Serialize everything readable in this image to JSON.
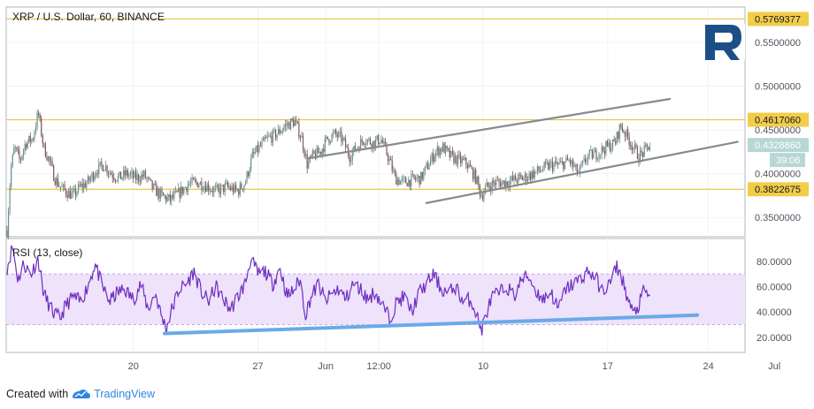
{
  "colors": {
    "candle_up": "#6a8f8f",
    "candle_down": "#7a5a5a",
    "hline": "#e8c547",
    "hline_label_bg": "#f2cd49",
    "last_price_bg": "#b7d7d6",
    "channel": "#858b8e",
    "rsi_line": "#6d2fc0",
    "rsi_band": "#efe2fb",
    "rsi_trend": "#6aaae8",
    "grid": "#f0f3f5",
    "border": "#b2b5be",
    "logo": "#1d4f87"
  },
  "chart_data": [
    {
      "type": "candlestick",
      "title": "XRP / U.S. Dollar, 60, BINANCE",
      "ylim": [
        0.328,
        0.5905
      ],
      "yticks": [
        "0.3500000",
        "0.4000000",
        "0.4500000",
        "0.5000000",
        "0.5500000"
      ],
      "xticks": [
        "20",
        "27",
        "Jun",
        "12:00",
        "10",
        "17",
        "24",
        "Jul"
      ],
      "horizontal_levels": [
        "0.5769377",
        "0.4617060",
        "0.3822675"
      ],
      "last_price": "0.4328860",
      "countdown": "39:06",
      "x_range_days": [
        13.6,
        31.7
      ],
      "price_path": [
        [
          13.6,
          0.335
        ],
        [
          13.8,
          0.405
        ],
        [
          14.0,
          0.43
        ],
        [
          14.3,
          0.415
        ],
        [
          14.6,
          0.435
        ],
        [
          15.0,
          0.44
        ],
        [
          15.3,
          0.47
        ],
        [
          15.6,
          0.43
        ],
        [
          15.9,
          0.415
        ],
        [
          16.2,
          0.395
        ],
        [
          16.5,
          0.385
        ],
        [
          16.8,
          0.38
        ],
        [
          17.2,
          0.375
        ],
        [
          17.6,
          0.385
        ],
        [
          18.0,
          0.39
        ],
        [
          18.5,
          0.405
        ],
        [
          18.9,
          0.41
        ],
        [
          19.3,
          0.4
        ],
        [
          19.7,
          0.395
        ],
        [
          20.1,
          0.4
        ],
        [
          20.6,
          0.395
        ],
        [
          21.1,
          0.398
        ],
        [
          21.5,
          0.385
        ],
        [
          22.0,
          0.375
        ],
        [
          22.5,
          0.37
        ],
        [
          23.0,
          0.378
        ],
        [
          23.5,
          0.388
        ],
        [
          24.0,
          0.39
        ],
        [
          24.5,
          0.386
        ],
        [
          25.0,
          0.38
        ],
        [
          25.6,
          0.385
        ],
        [
          26.2,
          0.38
        ],
        [
          26.6,
          0.39
        ],
        [
          27.0,
          0.42
        ],
        [
          27.4,
          0.43
        ],
        [
          27.8,
          0.44
        ],
        [
          28.3,
          0.445
        ],
        [
          28.8,
          0.455
        ],
        [
          29.3,
          0.46
        ],
        [
          29.7,
          0.44
        ],
        [
          30.0,
          0.41
        ],
        [
          30.3,
          0.42
        ],
        [
          30.7,
          0.425
        ],
        [
          31.1,
          0.44
        ],
        [
          31.5,
          0.445
        ],
        [
          31.9,
          0.44
        ],
        [
          32.3,
          0.42
        ],
        [
          32.7,
          0.43
        ],
        [
          33.1,
          0.44
        ],
        [
          33.6,
          0.435
        ],
        [
          34.0,
          0.44
        ],
        [
          34.4,
          0.42
        ],
        [
          34.8,
          0.395
        ],
        [
          35.2,
          0.39
        ],
        [
          35.7,
          0.393
        ],
        [
          36.2,
          0.395
        ],
        [
          36.6,
          0.41
        ],
        [
          37.0,
          0.425
        ],
        [
          37.4,
          0.43
        ],
        [
          37.8,
          0.42
        ],
        [
          38.2,
          0.416
        ],
        [
          38.7,
          0.412
        ],
        [
          39.2,
          0.395
        ],
        [
          39.5,
          0.375
        ],
        [
          39.8,
          0.385
        ],
        [
          40.3,
          0.39
        ],
        [
          40.8,
          0.39
        ],
        [
          41.3,
          0.393
        ],
        [
          41.8,
          0.395
        ],
        [
          42.3,
          0.4
        ],
        [
          42.8,
          0.405
        ],
        [
          43.3,
          0.41
        ],
        [
          43.8,
          0.41
        ],
        [
          44.3,
          0.415
        ],
        [
          44.8,
          0.4
        ],
        [
          45.3,
          0.42
        ],
        [
          45.8,
          0.423
        ],
        [
          46.3,
          0.43
        ],
        [
          46.8,
          0.435
        ],
        [
          47.1,
          0.455
        ],
        [
          47.4,
          0.445
        ],
        [
          47.8,
          0.43
        ],
        [
          48.1,
          0.42
        ],
        [
          48.4,
          0.425
        ],
        [
          48.7,
          0.433
        ]
      ]
    },
    {
      "type": "line",
      "title": "RSI (13, close)",
      "ylim": [
        8,
        98
      ],
      "yticks": [
        "20.0000",
        "40.0000",
        "60.0000",
        "80.0000"
      ],
      "band": [
        30,
        70
      ],
      "rsi_path": [
        [
          13.6,
          75
        ],
        [
          13.9,
          92
        ],
        [
          14.2,
          65
        ],
        [
          14.5,
          78
        ],
        [
          14.9,
          70
        ],
        [
          15.3,
          82
        ],
        [
          15.6,
          55
        ],
        [
          15.9,
          45
        ],
        [
          16.2,
          38
        ],
        [
          16.5,
          35
        ],
        [
          16.8,
          45
        ],
        [
          17.2,
          52
        ],
        [
          17.6,
          48
        ],
        [
          18.0,
          60
        ],
        [
          18.4,
          78
        ],
        [
          18.8,
          60
        ],
        [
          19.2,
          48
        ],
        [
          19.6,
          55
        ],
        [
          20.0,
          58
        ],
        [
          20.5,
          50
        ],
        [
          20.9,
          62
        ],
        [
          21.3,
          42
        ],
        [
          21.7,
          55
        ],
        [
          22.0,
          38
        ],
        [
          22.3,
          27
        ],
        [
          22.6,
          42
        ],
        [
          23.0,
          58
        ],
        [
          23.4,
          62
        ],
        [
          23.8,
          72
        ],
        [
          24.2,
          56
        ],
        [
          24.6,
          48
        ],
        [
          25.0,
          60
        ],
        [
          25.4,
          50
        ],
        [
          25.8,
          42
        ],
        [
          26.2,
          52
        ],
        [
          26.6,
          62
        ],
        [
          26.9,
          82
        ],
        [
          27.3,
          70
        ],
        [
          27.7,
          72
        ],
        [
          28.1,
          62
        ],
        [
          28.5,
          75
        ],
        [
          28.9,
          52
        ],
        [
          29.3,
          58
        ],
        [
          29.6,
          66
        ],
        [
          29.9,
          38
        ],
        [
          30.2,
          52
        ],
        [
          30.6,
          62
        ],
        [
          31.0,
          48
        ],
        [
          31.3,
          54
        ],
        [
          31.7,
          58
        ],
        [
          32.1,
          50
        ],
        [
          32.5,
          62
        ],
        [
          32.9,
          58
        ],
        [
          33.3,
          50
        ],
        [
          33.7,
          56
        ],
        [
          34.1,
          45
        ],
        [
          34.5,
          35
        ],
        [
          34.9,
          48
        ],
        [
          35.3,
          52
        ],
        [
          35.7,
          40
        ],
        [
          36.1,
          55
        ],
        [
          36.5,
          62
        ],
        [
          36.9,
          70
        ],
        [
          37.3,
          58
        ],
        [
          37.7,
          55
        ],
        [
          38.1,
          60
        ],
        [
          38.5,
          48
        ],
        [
          38.9,
          50
        ],
        [
          39.2,
          40
        ],
        [
          39.5,
          25
        ],
        [
          39.8,
          40
        ],
        [
          40.1,
          52
        ],
        [
          40.5,
          55
        ],
        [
          40.9,
          60
        ],
        [
          41.3,
          52
        ],
        [
          41.7,
          66
        ],
        [
          42.1,
          68
        ],
        [
          42.5,
          56
        ],
        [
          42.9,
          50
        ],
        [
          43.3,
          56
        ],
        [
          43.7,
          42
        ],
        [
          44.1,
          58
        ],
        [
          44.5,
          62
        ],
        [
          44.9,
          66
        ],
        [
          45.3,
          72
        ],
        [
          45.7,
          68
        ],
        [
          46.1,
          56
        ],
        [
          46.5,
          62
        ],
        [
          46.9,
          76
        ],
        [
          47.2,
          66
        ],
        [
          47.5,
          50
        ],
        [
          47.8,
          38
        ],
        [
          48.1,
          45
        ],
        [
          48.4,
          58
        ],
        [
          48.7,
          50
        ]
      ]
    }
  ],
  "drawings": {
    "channel_upper": [
      [
        30.0,
        0.4175
      ],
      [
        49.8,
        0.4855
      ]
    ],
    "channel_upper_ext": [
      [
        30.0,
        0.4175
      ],
      [
        48.4,
        0.4617
      ]
    ],
    "channel_lower_main": [
      [
        36.5,
        0.3665
      ],
      [
        53.5,
        0.4365
      ]
    ],
    "rsi_trendline": [
      [
        22.2,
        23.0
      ],
      [
        51.3,
        37.5
      ]
    ]
  },
  "logo_text": "R",
  "footer": {
    "created_with": "Created with",
    "brand": "TradingView"
  }
}
